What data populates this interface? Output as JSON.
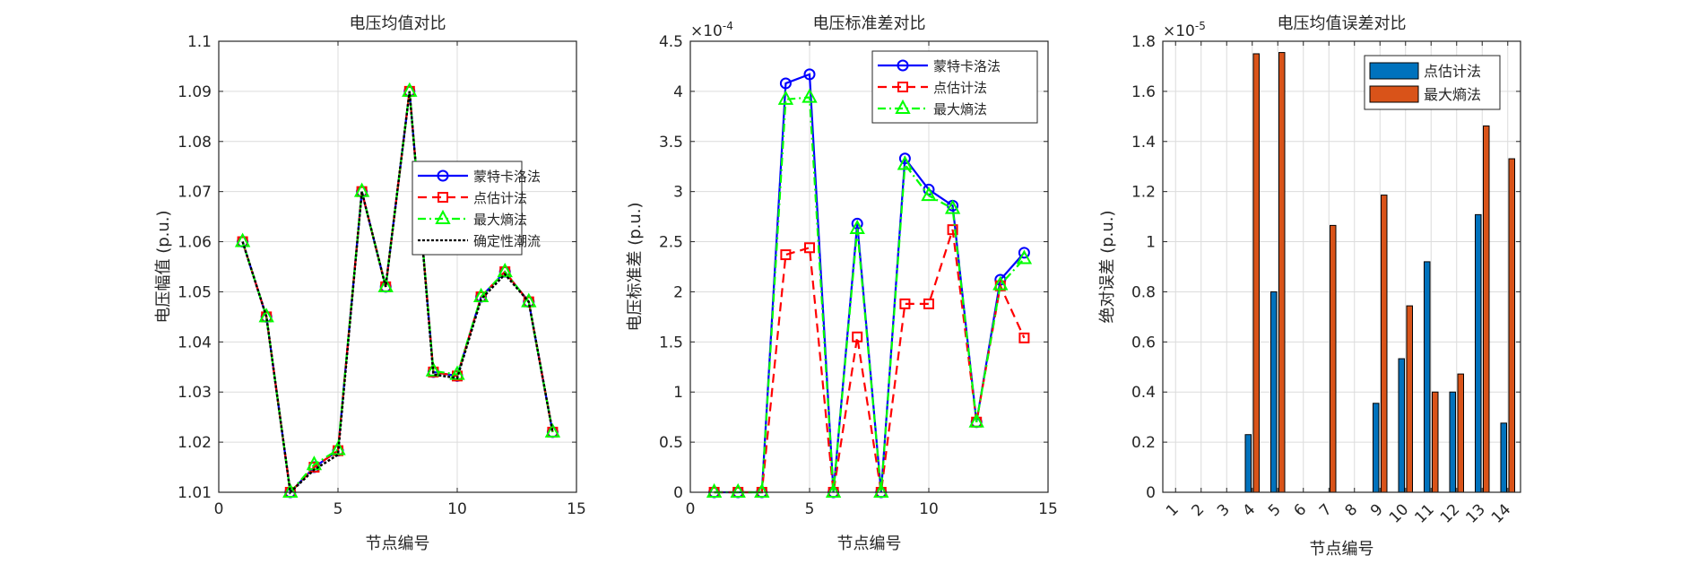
{
  "chart_data": [
    {
      "type": "line",
      "title": "电压均值对比",
      "xlabel": "节点编号",
      "ylabel": "电压幅值 (p.u.)",
      "xlim": [
        0,
        15
      ],
      "ylim": [
        1.01,
        1.1
      ],
      "xticks": [
        0,
        5,
        10,
        15
      ],
      "yticks": [
        1.01,
        1.02,
        1.03,
        1.04,
        1.05,
        1.06,
        1.07,
        1.08,
        1.09,
        1.1
      ],
      "exponent": "",
      "grid": true,
      "legend_position": "right-middle",
      "x": [
        1,
        2,
        3,
        4,
        5,
        6,
        7,
        8,
        9,
        10,
        11,
        12,
        13,
        14
      ],
      "series": [
        {
          "name": "蒙特卡洛法",
          "color": "#0000ff",
          "style": "solid",
          "marker": "circle",
          "values": [
            1.06,
            1.045,
            1.01,
            1.015,
            1.0183,
            1.07,
            1.051,
            1.09,
            1.034,
            1.0332,
            1.049,
            1.054,
            1.048,
            1.022
          ]
        },
        {
          "name": "点估计法",
          "color": "#ff0000",
          "style": "dashed",
          "marker": "square",
          "values": [
            1.06,
            1.045,
            1.01,
            1.015,
            1.0183,
            1.07,
            1.051,
            1.09,
            1.034,
            1.0332,
            1.049,
            1.054,
            1.048,
            1.022
          ]
        },
        {
          "name": "最大熵法",
          "color": "#00ff00",
          "style": "dashdot",
          "marker": "triangle",
          "values": [
            1.06,
            1.045,
            1.01,
            1.0155,
            1.0185,
            1.07,
            1.051,
            1.09,
            1.0342,
            1.0335,
            1.049,
            1.054,
            1.048,
            1.022
          ]
        },
        {
          "name": "确定性潮流",
          "color": "#000000",
          "style": "dotted",
          "marker": "none",
          "values": [
            1.06,
            1.045,
            1.01,
            1.0145,
            1.0175,
            1.07,
            1.051,
            1.09,
            1.0335,
            1.0328,
            1.0485,
            1.0535,
            1.048,
            1.022
          ]
        }
      ]
    },
    {
      "type": "line",
      "title": "电压标准差对比",
      "xlabel": "节点编号",
      "ylabel": "电压标准差 (p.u.)",
      "xlim": [
        0,
        15
      ],
      "ylim": [
        0,
        4.5
      ],
      "xticks": [
        0,
        5,
        10,
        15
      ],
      "yticks": [
        0,
        0.5,
        1,
        1.5,
        2,
        2.5,
        3,
        3.5,
        4,
        4.5
      ],
      "exponent": "-4",
      "grid": true,
      "legend_position": "top-right",
      "x": [
        1,
        2,
        3,
        4,
        5,
        6,
        7,
        8,
        9,
        10,
        11,
        12,
        13,
        14
      ],
      "series": [
        {
          "name": "蒙特卡洛法",
          "color": "#0000ff",
          "style": "solid",
          "marker": "circle",
          "values": [
            0,
            0,
            0,
            4.08,
            4.17,
            0,
            2.68,
            0,
            3.33,
            3.02,
            2.86,
            0.7,
            2.12,
            2.39
          ]
        },
        {
          "name": "点估计法",
          "color": "#ff0000",
          "style": "dashed",
          "marker": "square",
          "values": [
            0,
            0,
            0,
            2.37,
            2.44,
            0,
            1.55,
            0,
            1.88,
            1.88,
            2.62,
            0.7,
            2.06,
            1.54
          ]
        },
        {
          "name": "最大熵法",
          "color": "#00ff00",
          "style": "dashdot",
          "marker": "triangle",
          "values": [
            0,
            0,
            0,
            3.92,
            3.94,
            0,
            2.63,
            0,
            3.27,
            2.96,
            2.83,
            0.7,
            2.07,
            2.33
          ]
        }
      ]
    },
    {
      "type": "bar",
      "title": "电压均值误差对比",
      "xlabel": "节点编号",
      "ylabel": "绝对误差 (p.u.)",
      "xlim": [
        0.5,
        14.5
      ],
      "ylim": [
        0,
        1.8
      ],
      "categories": [
        "1",
        "2",
        "3",
        "4",
        "5",
        "6",
        "7",
        "8",
        "9",
        "10",
        "11",
        "12",
        "13",
        "14"
      ],
      "yticks": [
        0,
        0.2,
        0.4,
        0.6,
        0.8,
        1,
        1.2,
        1.4,
        1.6,
        1.8
      ],
      "exponent": "-5",
      "grid": true,
      "legend_position": "top-right",
      "series": [
        {
          "name": "点估计法",
          "color": "#0072bd",
          "values": [
            0,
            0,
            0,
            0.23,
            0.8,
            0,
            0,
            0,
            0.355,
            0.533,
            0.92,
            0.4,
            1.108,
            0.276
          ]
        },
        {
          "name": "最大熵法",
          "color": "#d95319",
          "values": [
            0,
            0,
            0,
            1.75,
            1.755,
            0,
            1.065,
            0,
            1.186,
            0.744,
            0.4,
            0.472,
            1.462,
            1.331
          ]
        }
      ]
    }
  ]
}
